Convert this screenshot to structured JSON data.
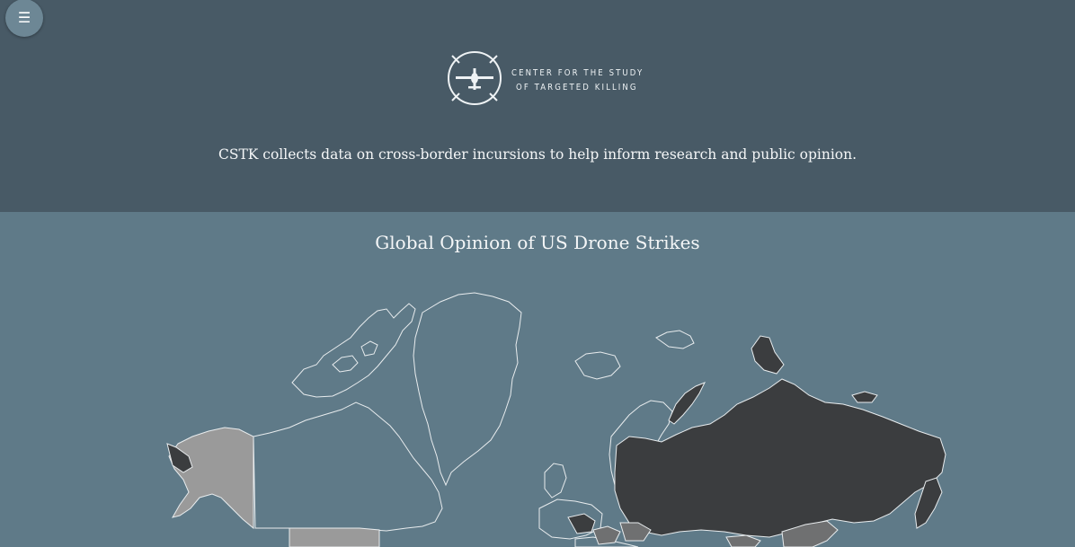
{
  "header": {
    "menu_icon": "hamburger-menu-icon",
    "logo_icon": "drone-crosshair-icon",
    "logo_line1": "CENTER FOR THE STUDY",
    "logo_line2": "OF TARGETED KILLING",
    "tagline": "CSTK collects data on cross-border incursions to help inform research and public opinion."
  },
  "map": {
    "title": "Global Opinion of US Drone Strikes"
  },
  "colors": {
    "header_bg": "#485a66",
    "map_bg": "#5f7a88",
    "country_light": "#9a9a9a",
    "country_dark": "#3b3d3f",
    "country_mid": "#6f7071",
    "outline": "#e8ecee"
  }
}
